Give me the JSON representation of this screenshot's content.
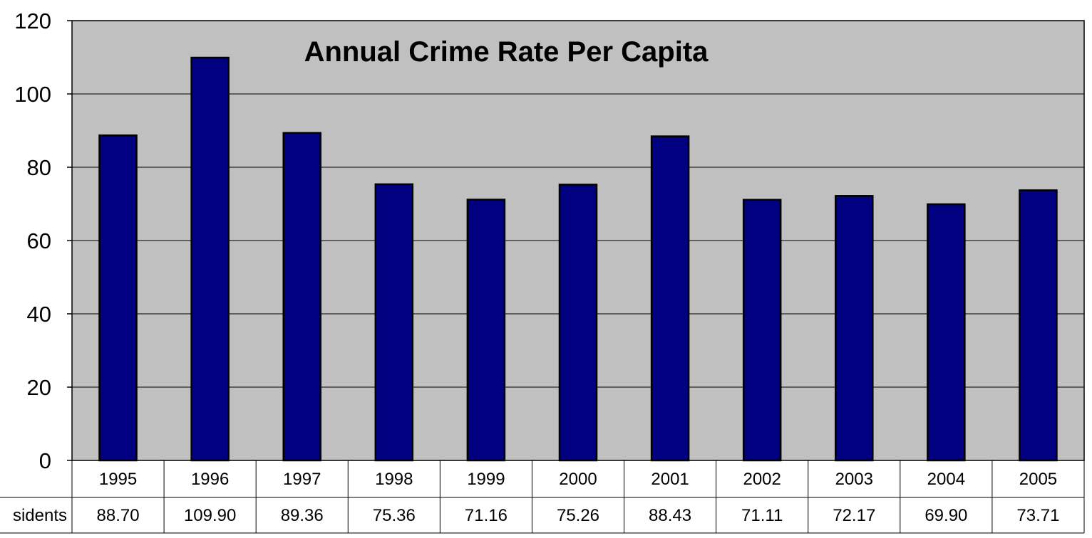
{
  "chart_data": {
    "type": "bar",
    "title": "Annual Crime Rate Per Capita",
    "categories": [
      "1995",
      "1996",
      "1997",
      "1998",
      "1999",
      "2000",
      "2001",
      "2002",
      "2003",
      "2004",
      "2005"
    ],
    "series": [
      {
        "name": "sidents",
        "values": [
          88.7,
          109.9,
          89.36,
          75.36,
          71.16,
          75.26,
          88.43,
          71.11,
          72.17,
          69.9,
          73.71
        ]
      }
    ],
    "value_labels": [
      "88.70",
      "109.90",
      "89.36",
      "75.36",
      "71.16",
      "75.26",
      "88.43",
      "71.11",
      "72.17",
      "69.90",
      "73.71"
    ],
    "ylim": [
      0,
      120
    ],
    "yticks": [
      0,
      20,
      40,
      60,
      80,
      100,
      120
    ],
    "grid": true,
    "data_table": true,
    "colors": {
      "plot_background": "#c0c0c0",
      "bar_fill": "#000080",
      "bar_stroke": "#000000",
      "gridline": "#000000"
    }
  }
}
